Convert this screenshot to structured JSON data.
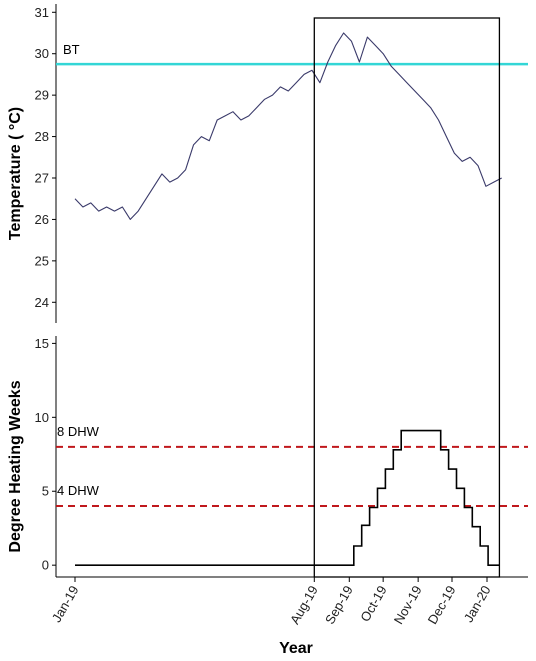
{
  "chart_data": [
    {
      "type": "line",
      "ylabel": "Temperature ( °C)",
      "ylim": [
        23.5,
        31.2
      ],
      "yticks": [
        "24",
        "25",
        "26",
        "27",
        "28",
        "29",
        "30",
        "31"
      ],
      "reference_line": {
        "label": "BT",
        "y": 29.75,
        "color": "#33d6d6"
      },
      "series": [
        {
          "color": "#3a3a6a",
          "x": [
            "2019-01-01",
            "2019-01-08",
            "2019-01-15",
            "2019-01-22",
            "2019-01-29",
            "2019-02-05",
            "2019-02-12",
            "2019-02-19",
            "2019-02-26",
            "2019-03-05",
            "2019-03-12",
            "2019-03-19",
            "2019-03-26",
            "2019-04-02",
            "2019-04-09",
            "2019-04-16",
            "2019-04-23",
            "2019-04-30",
            "2019-05-07",
            "2019-05-14",
            "2019-05-21",
            "2019-05-28",
            "2019-06-04",
            "2019-06-11",
            "2019-06-18",
            "2019-06-25",
            "2019-07-02",
            "2019-07-09",
            "2019-07-16",
            "2019-07-23",
            "2019-07-30",
            "2019-08-06",
            "2019-08-13",
            "2019-08-20",
            "2019-08-27",
            "2019-09-03",
            "2019-09-10",
            "2019-09-17",
            "2019-09-24",
            "2019-10-01",
            "2019-10-08",
            "2019-10-15",
            "2019-10-22",
            "2019-10-29",
            "2019-11-05",
            "2019-11-12",
            "2019-11-19",
            "2019-11-26",
            "2019-12-03",
            "2019-12-10",
            "2019-12-17",
            "2019-12-24",
            "2019-12-31",
            "2020-01-07",
            "2020-01-14"
          ],
          "values": [
            26.5,
            26.3,
            26.4,
            26.2,
            26.3,
            26.2,
            26.3,
            26.0,
            26.2,
            26.5,
            26.8,
            27.1,
            26.9,
            27.0,
            27.2,
            27.8,
            28.0,
            27.9,
            28.4,
            28.5,
            28.6,
            28.4,
            28.5,
            28.7,
            28.9,
            29.0,
            29.2,
            29.1,
            29.3,
            29.5,
            29.6,
            29.3,
            29.8,
            30.2,
            30.5,
            30.3,
            29.8,
            30.4,
            30.2,
            30.0,
            29.7,
            29.5,
            29.3,
            29.1,
            28.9,
            28.7,
            28.4,
            28.0,
            27.6,
            27.4,
            27.5,
            27.3,
            26.8,
            26.9,
            27.0
          ]
        }
      ]
    },
    {
      "type": "line",
      "xlabel": "Year",
      "ylabel": "Degree Heating Weeks",
      "ylim": [
        -0.8,
        15.5
      ],
      "yticks": [
        "0",
        "5",
        "10",
        "15"
      ],
      "xticks": [
        {
          "label": "Jan-19",
          "x": "2019-01-01"
        },
        {
          "label": "Aug-19",
          "x": "2019-08-01"
        },
        {
          "label": "Sep-19",
          "x": "2019-09-01"
        },
        {
          "label": "Oct-19",
          "x": "2019-10-01"
        },
        {
          "label": "Nov-19",
          "x": "2019-11-01"
        },
        {
          "label": "Dec-19",
          "x": "2019-12-01"
        },
        {
          "label": "Jan-20",
          "x": "2020-01-01"
        }
      ],
      "reference_lines": [
        {
          "label": "8 DHW",
          "y": 8,
          "color": "#c0181c",
          "style": "dashed"
        },
        {
          "label": "4 DHW",
          "y": 4,
          "color": "#c0181c",
          "style": "dashed"
        }
      ],
      "series": [
        {
          "color": "#000000",
          "step": true,
          "x": [
            "2019-01-01",
            "2019-09-01",
            "2019-09-05",
            "2019-09-12",
            "2019-09-19",
            "2019-09-26",
            "2019-10-03",
            "2019-10-10",
            "2019-10-17",
            "2019-11-14",
            "2019-11-21",
            "2019-11-28",
            "2019-12-05",
            "2019-12-12",
            "2019-12-19",
            "2019-12-26",
            "2020-01-02",
            "2020-01-12"
          ],
          "values": [
            0,
            0,
            1.3,
            2.7,
            3.9,
            5.2,
            6.5,
            7.8,
            9.1,
            9.1,
            7.8,
            6.5,
            5.2,
            3.9,
            2.6,
            1.3,
            0,
            0
          ]
        }
      ]
    }
  ],
  "highlight_box": {
    "x": [
      "2019-08-01",
      "2020-01-12"
    ]
  }
}
